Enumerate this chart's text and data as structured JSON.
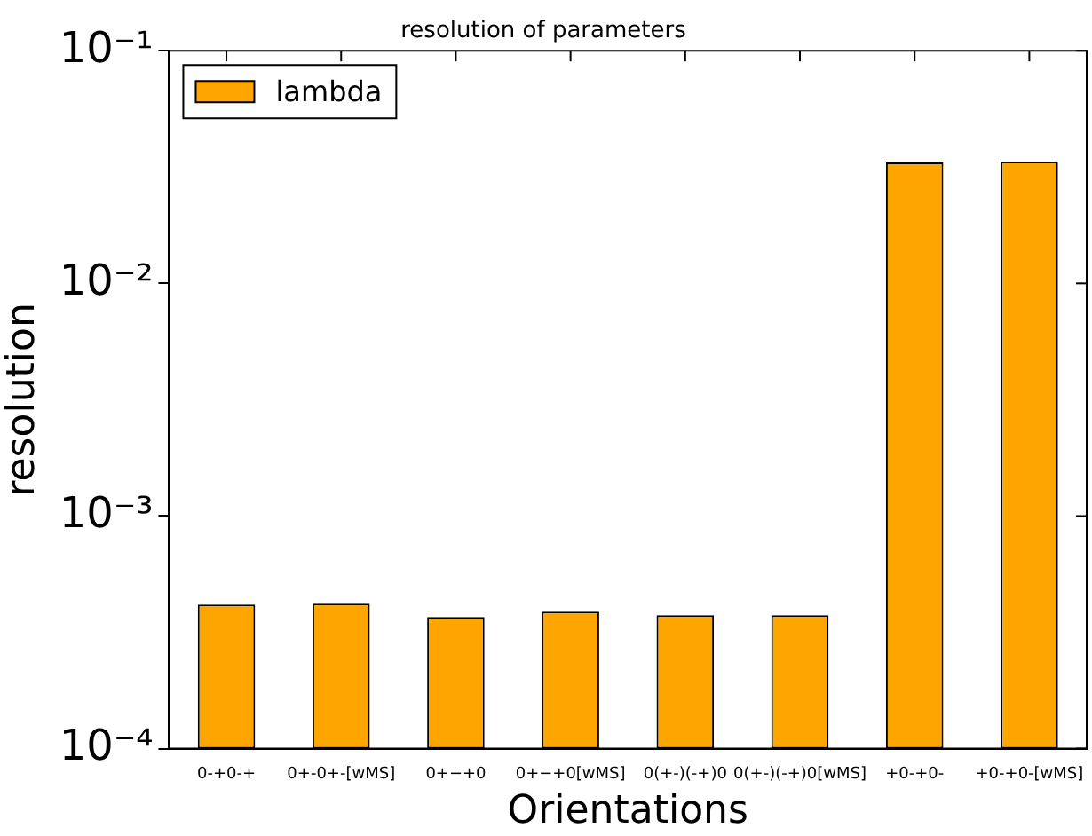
{
  "chart_data": {
    "type": "bar",
    "title": "resolution of parameters",
    "xlabel": "Orientations",
    "ylabel": "resolution",
    "categories": [
      "0-+0-+",
      "0+-0+-[wMS]",
      "0+−+0",
      "0+−+0[wMS]",
      "0(+-)(-+)0",
      "0(+-)(-+)0[wMS]",
      "+0-+0-",
      "+0-+0-[wMS]"
    ],
    "series": [
      {
        "name": "lambda",
        "color": "#ffa500",
        "values": [
          0.000416,
          0.00042,
          0.000368,
          0.000388,
          0.000375,
          0.000375,
          0.0331,
          0.0334
        ]
      }
    ],
    "log": "y",
    "ylim": [
      0.0001,
      0.1
    ],
    "yticks": [
      {
        "value": 0.0001,
        "label": "10⁻⁴"
      },
      {
        "value": 0.001,
        "label": "10⁻³"
      },
      {
        "value": 0.01,
        "label": "10⁻²"
      },
      {
        "value": 0.1,
        "label": "10⁻¹"
      }
    ],
    "grid": false,
    "legend": "top left"
  }
}
